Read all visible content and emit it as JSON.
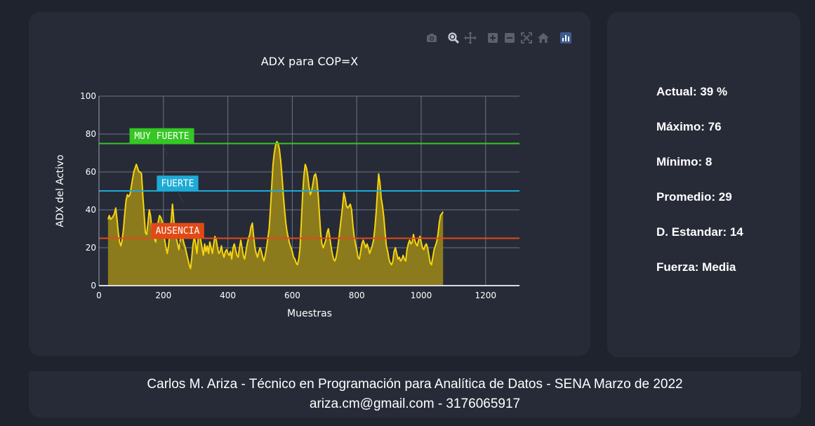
{
  "chart_data": {
    "type": "area",
    "title": "ADX para COP=X",
    "xlabel": "Muestras",
    "ylabel": "ADX del Activo",
    "xlim": [
      0,
      1305
    ],
    "ylim": [
      0,
      100
    ],
    "x_ticks": [
      0,
      200,
      400,
      600,
      800,
      1000,
      1200
    ],
    "y_ticks": [
      0,
      20,
      40,
      60,
      80,
      100
    ],
    "grid": true,
    "colors": {
      "line": "#f5d40f",
      "fill": "#8c7b1c",
      "grid": "#6e7384"
    },
    "series": [
      {
        "points": [
          [
            28,
            35
          ],
          [
            32,
            37
          ],
          [
            36,
            35
          ],
          [
            42,
            36
          ],
          [
            48,
            38
          ],
          [
            52,
            41
          ],
          [
            56,
            35
          ],
          [
            60,
            28
          ],
          [
            64,
            23
          ],
          [
            68,
            21
          ],
          [
            72,
            24
          ],
          [
            76,
            30
          ],
          [
            80,
            38
          ],
          [
            84,
            45
          ],
          [
            88,
            48
          ],
          [
            92,
            47
          ],
          [
            96,
            48
          ],
          [
            100,
            52
          ],
          [
            104,
            56
          ],
          [
            108,
            60
          ],
          [
            112,
            62
          ],
          [
            116,
            64
          ],
          [
            120,
            62
          ],
          [
            124,
            60
          ],
          [
            128,
            60
          ],
          [
            132,
            59
          ],
          [
            136,
            48
          ],
          [
            140,
            38
          ],
          [
            144,
            28
          ],
          [
            148,
            27
          ],
          [
            152,
            33
          ],
          [
            156,
            40
          ],
          [
            160,
            37
          ],
          [
            164,
            30
          ],
          [
            168,
            27
          ],
          [
            172,
            25
          ],
          [
            176,
            23
          ],
          [
            180,
            30
          ],
          [
            184,
            34
          ],
          [
            188,
            37
          ],
          [
            192,
            36
          ],
          [
            196,
            34
          ],
          [
            200,
            30
          ],
          [
            204,
            24
          ],
          [
            208,
            20
          ],
          [
            212,
            17
          ],
          [
            216,
            21
          ],
          [
            220,
            28
          ],
          [
            224,
            34
          ],
          [
            228,
            43
          ],
          [
            232,
            35
          ],
          [
            236,
            28
          ],
          [
            240,
            25
          ],
          [
            244,
            22
          ],
          [
            248,
            19
          ],
          [
            252,
            24
          ],
          [
            256,
            27
          ],
          [
            260,
            25
          ],
          [
            264,
            22
          ],
          [
            268,
            20
          ],
          [
            272,
            17
          ],
          [
            276,
            14
          ],
          [
            280,
            11
          ],
          [
            284,
            9
          ],
          [
            288,
            15
          ],
          [
            292,
            22
          ],
          [
            296,
            26
          ],
          [
            300,
            22
          ],
          [
            304,
            17
          ],
          [
            308,
            25
          ],
          [
            312,
            29
          ],
          [
            316,
            24
          ],
          [
            320,
            20
          ],
          [
            324,
            16
          ],
          [
            328,
            22
          ],
          [
            332,
            18
          ],
          [
            336,
            21
          ],
          [
            340,
            17
          ],
          [
            344,
            23
          ],
          [
            348,
            20
          ],
          [
            352,
            17
          ],
          [
            356,
            22
          ],
          [
            360,
            26
          ],
          [
            364,
            24
          ],
          [
            368,
            20
          ],
          [
            372,
            17
          ],
          [
            376,
            18
          ],
          [
            380,
            21
          ],
          [
            384,
            17
          ],
          [
            388,
            15
          ],
          [
            392,
            18
          ],
          [
            396,
            19
          ],
          [
            400,
            17
          ],
          [
            404,
            16
          ],
          [
            408,
            18
          ],
          [
            412,
            14
          ],
          [
            416,
            20
          ],
          [
            420,
            22
          ],
          [
            424,
            19
          ],
          [
            428,
            16
          ],
          [
            432,
            15
          ],
          [
            436,
            20
          ],
          [
            440,
            24
          ],
          [
            444,
            20
          ],
          [
            448,
            16
          ],
          [
            452,
            14
          ],
          [
            456,
            18
          ],
          [
            460,
            22
          ],
          [
            464,
            25
          ],
          [
            468,
            27
          ],
          [
            472,
            31
          ],
          [
            476,
            33
          ],
          [
            480,
            26
          ],
          [
            484,
            20
          ],
          [
            488,
            17
          ],
          [
            492,
            15
          ],
          [
            496,
            18
          ],
          [
            500,
            20
          ],
          [
            504,
            18
          ],
          [
            508,
            15
          ],
          [
            512,
            13
          ],
          [
            516,
            16
          ],
          [
            520,
            20
          ],
          [
            524,
            25
          ],
          [
            528,
            30
          ],
          [
            532,
            40
          ],
          [
            536,
            52
          ],
          [
            540,
            64
          ],
          [
            544,
            70
          ],
          [
            548,
            74
          ],
          [
            552,
            76
          ],
          [
            556,
            75
          ],
          [
            560,
            72
          ],
          [
            564,
            66
          ],
          [
            568,
            58
          ],
          [
            572,
            48
          ],
          [
            576,
            40
          ],
          [
            580,
            33
          ],
          [
            584,
            28
          ],
          [
            588,
            25
          ],
          [
            592,
            22
          ],
          [
            596,
            20
          ],
          [
            600,
            18
          ],
          [
            604,
            15
          ],
          [
            608,
            14
          ],
          [
            612,
            12
          ],
          [
            616,
            11
          ],
          [
            620,
            14
          ],
          [
            624,
            20
          ],
          [
            628,
            34
          ],
          [
            632,
            48
          ],
          [
            636,
            58
          ],
          [
            640,
            64
          ],
          [
            644,
            62
          ],
          [
            648,
            58
          ],
          [
            652,
            52
          ],
          [
            656,
            48
          ],
          [
            660,
            50
          ],
          [
            664,
            54
          ],
          [
            668,
            58
          ],
          [
            672,
            59
          ],
          [
            676,
            56
          ],
          [
            680,
            49
          ],
          [
            684,
            38
          ],
          [
            688,
            28
          ],
          [
            692,
            22
          ],
          [
            696,
            20
          ],
          [
            700,
            22
          ],
          [
            704,
            24
          ],
          [
            708,
            28
          ],
          [
            712,
            30
          ],
          [
            716,
            26
          ],
          [
            720,
            21
          ],
          [
            724,
            17
          ],
          [
            728,
            14
          ],
          [
            732,
            13
          ],
          [
            736,
            15
          ],
          [
            740,
            19
          ],
          [
            744,
            24
          ],
          [
            748,
            30
          ],
          [
            752,
            36
          ],
          [
            756,
            42
          ],
          [
            760,
            49
          ],
          [
            764,
            46
          ],
          [
            768,
            42
          ],
          [
            772,
            41
          ],
          [
            776,
            42
          ],
          [
            780,
            43
          ],
          [
            784,
            40
          ],
          [
            788,
            32
          ],
          [
            792,
            26
          ],
          [
            796,
            22
          ],
          [
            800,
            19
          ],
          [
            804,
            15
          ],
          [
            808,
            14
          ],
          [
            812,
            18
          ],
          [
            816,
            22
          ],
          [
            820,
            24
          ],
          [
            824,
            22
          ],
          [
            828,
            20
          ],
          [
            832,
            22
          ],
          [
            836,
            20
          ],
          [
            840,
            17
          ],
          [
            844,
            19
          ],
          [
            848,
            21
          ],
          [
            852,
            24
          ],
          [
            856,
            30
          ],
          [
            860,
            38
          ],
          [
            864,
            49
          ],
          [
            868,
            59
          ],
          [
            872,
            54
          ],
          [
            876,
            46
          ],
          [
            880,
            42
          ],
          [
            884,
            36
          ],
          [
            888,
            28
          ],
          [
            892,
            21
          ],
          [
            896,
            18
          ],
          [
            900,
            14
          ],
          [
            904,
            12
          ],
          [
            908,
            11
          ],
          [
            912,
            13
          ],
          [
            916,
            18
          ],
          [
            920,
            20
          ],
          [
            924,
            17
          ],
          [
            928,
            14
          ],
          [
            932,
            15
          ],
          [
            936,
            13
          ],
          [
            940,
            14
          ],
          [
            944,
            16
          ],
          [
            948,
            14
          ],
          [
            952,
            13
          ],
          [
            956,
            19
          ],
          [
            960,
            22
          ],
          [
            964,
            24
          ],
          [
            968,
            22
          ],
          [
            972,
            23
          ],
          [
            976,
            27
          ],
          [
            980,
            24
          ],
          [
            984,
            22
          ],
          [
            988,
            21
          ],
          [
            992,
            24
          ],
          [
            996,
            26
          ],
          [
            1000,
            23
          ],
          [
            1004,
            20
          ],
          [
            1008,
            19
          ],
          [
            1012,
            21
          ],
          [
            1016,
            22
          ],
          [
            1020,
            20
          ],
          [
            1024,
            16
          ],
          [
            1028,
            12
          ],
          [
            1032,
            11
          ],
          [
            1036,
            15
          ],
          [
            1040,
            19
          ],
          [
            1044,
            21
          ],
          [
            1048,
            23
          ],
          [
            1052,
            27
          ],
          [
            1056,
            33
          ],
          [
            1060,
            37
          ],
          [
            1064,
            38
          ],
          [
            1068,
            39
          ]
        ]
      }
    ],
    "annotations": [
      {
        "text": "MUY FUERTE",
        "level": 75,
        "color": "#35c724",
        "box_x": 195,
        "box_y": 79
      },
      {
        "text": "FUERTE",
        "level": 50,
        "color": "#1eaad6",
        "box_x": 244,
        "box_y": 54
      },
      {
        "text": "AUSENCIA",
        "level": 25,
        "color": "#e14a17",
        "box_x": 244,
        "box_y": 29
      }
    ]
  },
  "toolbar": {
    "icons": [
      "camera-icon",
      "zoom-icon",
      "pan-icon",
      "zoom-in-icon",
      "zoom-out-icon",
      "autoscale-icon",
      "reset-home-icon",
      "plotly-logo-icon"
    ]
  },
  "stats": {
    "actual": "Actual: 39 %",
    "maximo": "Máximo: 76",
    "minimo": "Mínimo: 8",
    "promedio": "Promedio: 29",
    "desviacion": "D. Estandar: 14",
    "fuerza": "Fuerza: Media"
  },
  "footer": {
    "line1": "Carlos M. Ariza - Técnico en Programación para Analítica de Datos - SENA Marzo de 2022",
    "line2": "ariza.cm@gmail.com - 3176065917"
  }
}
